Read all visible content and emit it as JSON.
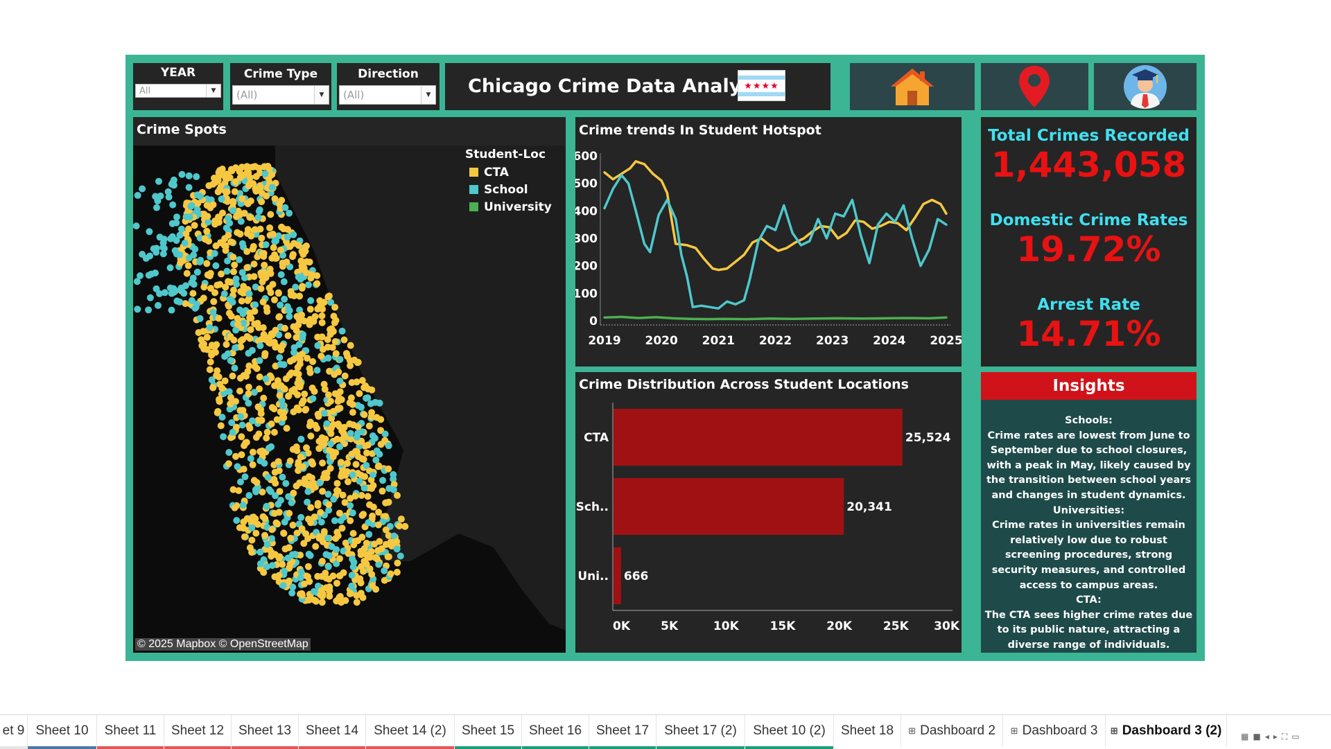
{
  "filters": {
    "year": {
      "label": "YEAR",
      "value": "All"
    },
    "crime_type": {
      "label": "Crime Type",
      "value": "(All)"
    },
    "direction": {
      "label": "Direction",
      "value": "(All)"
    }
  },
  "header": {
    "title": "Chicago Crime Data Analysis",
    "flag_stars": "★★★★",
    "nav_icons": [
      "home-icon",
      "location-pin-icon",
      "student-avatar-icon"
    ]
  },
  "map": {
    "title": "Crime Spots",
    "legend_title": "Student-Loc",
    "legend": [
      {
        "label": "CTA",
        "color": "#f6c842"
      },
      {
        "label": "School",
        "color": "#4fc8cc"
      },
      {
        "label": "University",
        "color": "#4caf50"
      }
    ],
    "attribution": "© 2025 Mapbox © OpenStreetMap"
  },
  "trend": {
    "title": "Crime trends In Student Hotspot",
    "chart_data": {
      "type": "line",
      "x_ticks": [
        "2019",
        "2020",
        "2021",
        "2022",
        "2023",
        "2024",
        "2025"
      ],
      "y_ticks": [
        "600",
        "500",
        "400",
        "300",
        "200",
        "100",
        "0"
      ],
      "ylim": [
        0,
        600
      ],
      "xlim": [
        2019,
        2025
      ],
      "series": [
        {
          "name": "CTA",
          "color": "#f6c842",
          "points": [
            [
              2019.0,
              540
            ],
            [
              2019.15,
              515
            ],
            [
              2019.3,
              535
            ],
            [
              2019.45,
              555
            ],
            [
              2019.55,
              580
            ],
            [
              2019.7,
              570
            ],
            [
              2019.85,
              535
            ],
            [
              2020.0,
              510
            ],
            [
              2020.1,
              465
            ],
            [
              2020.25,
              280
            ],
            [
              2020.45,
              275
            ],
            [
              2020.6,
              265
            ],
            [
              2020.75,
              225
            ],
            [
              2020.9,
              190
            ],
            [
              2021.0,
              185
            ],
            [
              2021.15,
              190
            ],
            [
              2021.3,
              215
            ],
            [
              2021.45,
              240
            ],
            [
              2021.6,
              285
            ],
            [
              2021.75,
              300
            ],
            [
              2021.9,
              275
            ],
            [
              2022.05,
              255
            ],
            [
              2022.2,
              265
            ],
            [
              2022.35,
              285
            ],
            [
              2022.5,
              300
            ],
            [
              2022.65,
              325
            ],
            [
              2022.8,
              345
            ],
            [
              2022.95,
              340
            ],
            [
              2023.1,
              300
            ],
            [
              2023.25,
              320
            ],
            [
              2023.4,
              365
            ],
            [
              2023.55,
              360
            ],
            [
              2023.7,
              335
            ],
            [
              2023.85,
              345
            ],
            [
              2024.0,
              360
            ],
            [
              2024.15,
              355
            ],
            [
              2024.3,
              330
            ],
            [
              2024.45,
              375
            ],
            [
              2024.6,
              425
            ],
            [
              2024.75,
              440
            ],
            [
              2024.9,
              425
            ],
            [
              2025.0,
              390
            ]
          ]
        },
        {
          "name": "School",
          "color": "#4fc8cc",
          "points": [
            [
              2019.0,
              410
            ],
            [
              2019.15,
              480
            ],
            [
              2019.3,
              530
            ],
            [
              2019.42,
              500
            ],
            [
              2019.55,
              400
            ],
            [
              2019.7,
              280
            ],
            [
              2019.8,
              250
            ],
            [
              2019.95,
              385
            ],
            [
              2020.1,
              440
            ],
            [
              2020.25,
              370
            ],
            [
              2020.35,
              240
            ],
            [
              2020.45,
              160
            ],
            [
              2020.55,
              50
            ],
            [
              2020.7,
              55
            ],
            [
              2020.85,
              50
            ],
            [
              2021.0,
              45
            ],
            [
              2021.15,
              70
            ],
            [
              2021.3,
              60
            ],
            [
              2021.45,
              75
            ],
            [
              2021.55,
              150
            ],
            [
              2021.7,
              290
            ],
            [
              2021.85,
              345
            ],
            [
              2022.0,
              330
            ],
            [
              2022.15,
              420
            ],
            [
              2022.3,
              320
            ],
            [
              2022.45,
              275
            ],
            [
              2022.6,
              290
            ],
            [
              2022.75,
              370
            ],
            [
              2022.9,
              300
            ],
            [
              2023.05,
              390
            ],
            [
              2023.2,
              380
            ],
            [
              2023.35,
              440
            ],
            [
              2023.5,
              310
            ],
            [
              2023.65,
              210
            ],
            [
              2023.8,
              350
            ],
            [
              2023.95,
              390
            ],
            [
              2024.1,
              360
            ],
            [
              2024.25,
              420
            ],
            [
              2024.4,
              300
            ],
            [
              2024.55,
              200
            ],
            [
              2024.7,
              260
            ],
            [
              2024.85,
              370
            ],
            [
              2025.0,
              350
            ]
          ]
        },
        {
          "name": "University",
          "color": "#4caf50",
          "points": [
            [
              2019.0,
              12
            ],
            [
              2019.3,
              14
            ],
            [
              2019.6,
              10
            ],
            [
              2019.9,
              13
            ],
            [
              2020.2,
              9
            ],
            [
              2020.5,
              7
            ],
            [
              2020.8,
              6
            ],
            [
              2021.1,
              7
            ],
            [
              2021.5,
              6
            ],
            [
              2021.9,
              8
            ],
            [
              2022.3,
              7
            ],
            [
              2022.7,
              8
            ],
            [
              2023.1,
              9
            ],
            [
              2023.5,
              8
            ],
            [
              2023.9,
              9
            ],
            [
              2024.3,
              10
            ],
            [
              2024.7,
              9
            ],
            [
              2025.0,
              12
            ]
          ]
        }
      ]
    }
  },
  "distribution": {
    "title": "Crime Distribution Across Student Locations",
    "chart_data": {
      "type": "bar",
      "orientation": "horizontal",
      "categories": [
        "CTA",
        "Sch..",
        "Uni.."
      ],
      "values": [
        25524,
        20341,
        666
      ],
      "value_labels": [
        "25,524",
        "20,341",
        "666"
      ],
      "x_ticks": [
        "0K",
        "5K",
        "10K",
        "15K",
        "20K",
        "25K",
        "30K"
      ],
      "xlim": [
        0,
        30000
      ],
      "color": "#a01114"
    }
  },
  "kpis": [
    {
      "label": "Total Crimes Recorded",
      "value": "1,443,058"
    },
    {
      "label": "Domestic Crime Rates",
      "value": "19.72%"
    },
    {
      "label": "Arrest Rate",
      "value": "14.71%"
    }
  ],
  "insights": {
    "title": "Insights",
    "lines": [
      "Schools:",
      "Crime rates are lowest from June to September due to school closures, with a peak in May, likely caused by the transition between school years and changes in student dynamics.",
      "Universities:",
      "Crime rates in universities remain relatively low due to robust screening procedures, strong security measures, and controlled access to campus areas.",
      "CTA:",
      "The CTA sees higher crime rates due to its public nature, attracting a diverse range of individuals."
    ]
  },
  "tabs": [
    {
      "label": "et 9",
      "bar": "#e6e6e6"
    },
    {
      "label": "Sheet 10",
      "bar": "#4e79a7"
    },
    {
      "label": "Sheet 11",
      "bar": "#e15759"
    },
    {
      "label": "Sheet 12",
      "bar": "#e15759"
    },
    {
      "label": "Sheet 13",
      "bar": "#e15759"
    },
    {
      "label": "Sheet 14",
      "bar": "#e15759"
    },
    {
      "label": "Sheet 14 (2)",
      "bar": "#e15759"
    },
    {
      "label": "Sheet 15",
      "bar": "#1b9e77"
    },
    {
      "label": "Sheet 16",
      "bar": "#1b9e77"
    },
    {
      "label": "Sheet 17",
      "bar": "#1b9e77"
    },
    {
      "label": "Sheet 17 (2)",
      "bar": "#1b9e77"
    },
    {
      "label": "Sheet 10 (2)",
      "bar": "#1b9e77"
    },
    {
      "label": "Sheet 18",
      "bar": ""
    },
    {
      "label": "Dashboard 2",
      "bar": "",
      "dashboard": true
    },
    {
      "label": "Dashboard 3",
      "bar": "",
      "dashboard": true
    },
    {
      "label": "Dashboard 3 (2)",
      "bar": "",
      "dashboard": true,
      "active": true
    }
  ]
}
